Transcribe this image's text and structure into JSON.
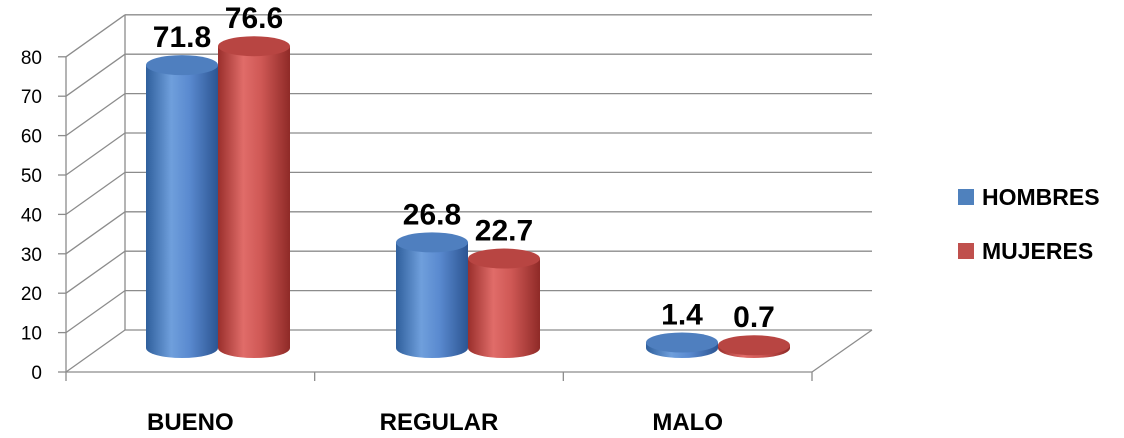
{
  "chart_data": {
    "type": "bar",
    "categories": [
      "BUENO",
      "REGULAR",
      "MALO"
    ],
    "series": [
      {
        "name": "HOMBRES",
        "values": [
          71.8,
          26.8,
          1.4
        ],
        "color": "#4F81BD"
      },
      {
        "name": "MUJERES",
        "values": [
          76.6,
          22.7,
          0.7
        ],
        "color": "#C0504D"
      }
    ],
    "data_labels": [
      [
        "71.8",
        "26.8",
        "1.4"
      ],
      [
        "76.6",
        "22.7",
        "0.7"
      ]
    ],
    "ylim": [
      0,
      80
    ],
    "yticks": [
      0,
      10,
      20,
      30,
      40,
      50,
      60,
      70,
      80
    ],
    "grid": true,
    "legend_position": "right",
    "style": "3d-cylinder"
  }
}
